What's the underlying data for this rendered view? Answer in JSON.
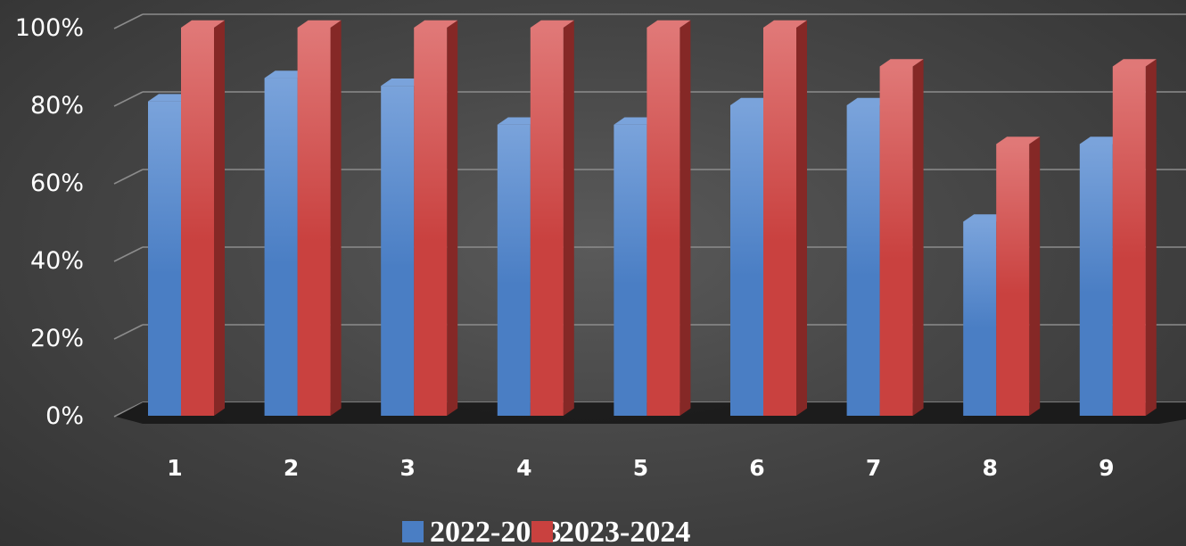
{
  "chart_data": {
    "type": "bar",
    "categories": [
      "1",
      "2",
      "3",
      "4",
      "5",
      "6",
      "7",
      "8",
      "9"
    ],
    "series": [
      {
        "name": "2022-2023",
        "values": [
          81,
          87,
          85,
          75,
          75,
          80,
          80,
          50,
          70
        ]
      },
      {
        "name": "2023-2024",
        "values": [
          100,
          100,
          100,
          100,
          100,
          100,
          90,
          70,
          90
        ]
      }
    ],
    "ylim": [
      0,
      100
    ],
    "yticks": [
      "0%",
      "20%",
      "40%",
      "60%",
      "80%",
      "100%"
    ],
    "grid": true,
    "legend_position": "bottom",
    "style": "3d-clustered-column"
  },
  "colors": {
    "series_front": [
      "#4a7ec4",
      "#c9413f"
    ],
    "series_side": [
      "#2f5686",
      "#852826"
    ],
    "series_top": [
      "#7aa3db",
      "#e07877"
    ],
    "gridline": "#8c8c8c",
    "floor_shadow": "#151515"
  }
}
